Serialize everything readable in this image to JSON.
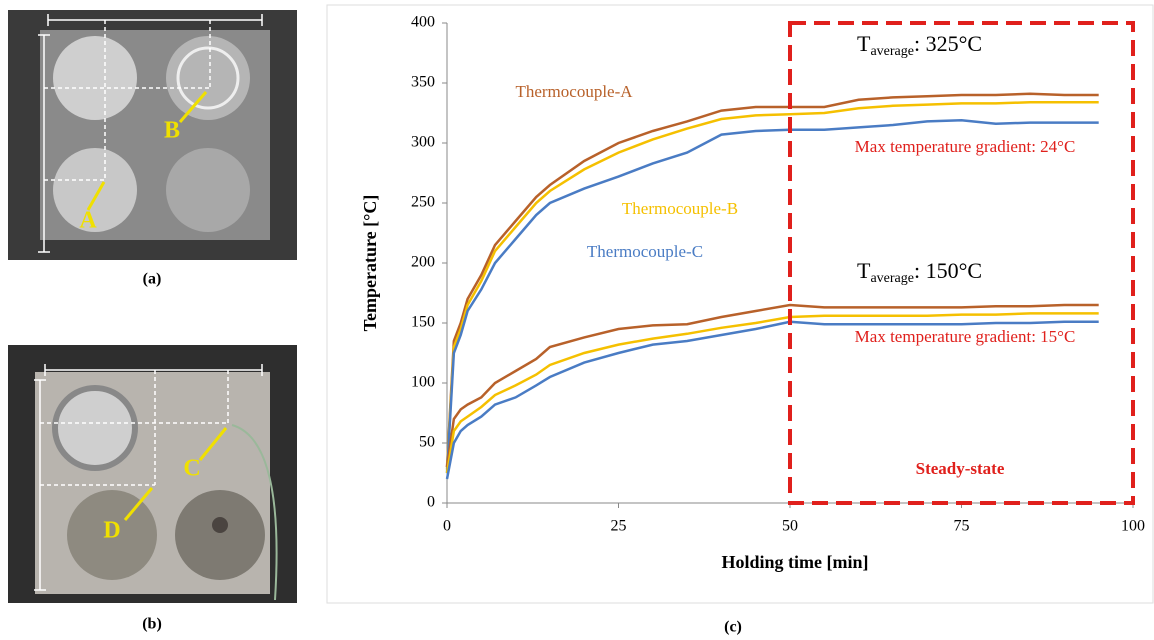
{
  "photos": {
    "a": {
      "caption": "(a)",
      "points": [
        "A",
        "B"
      ]
    },
    "b": {
      "caption": "(b)",
      "points": [
        "C",
        "D"
      ]
    }
  },
  "chart_data": {
    "type": "line",
    "caption": "(c)",
    "x_label": "Holding time [min]",
    "y_label": "Temperature [°C]",
    "xlim": [
      0,
      100
    ],
    "xticks": [
      0,
      25,
      50,
      75,
      100
    ],
    "ylim": [
      0,
      400
    ],
    "yticks": [
      0,
      50,
      100,
      150,
      200,
      250,
      300,
      350,
      400
    ],
    "x": [
      0,
      1,
      2,
      3,
      5,
      7,
      10,
      13,
      15,
      20,
      25,
      30,
      35,
      40,
      45,
      50,
      55,
      60,
      65,
      70,
      75,
      80,
      85,
      90,
      95
    ],
    "series": [
      {
        "name": "Thermocouple-A",
        "color": "#b8612a",
        "values": [
          30,
          135,
          150,
          170,
          190,
          215,
          235,
          255,
          265,
          285,
          300,
          310,
          318,
          327,
          330,
          330,
          330,
          336,
          338,
          339,
          340,
          340,
          341,
          340,
          340
        ]
      },
      {
        "name": "Thermocouple-B",
        "color": "#f5c000",
        "values": [
          28,
          130,
          145,
          165,
          185,
          210,
          230,
          250,
          260,
          278,
          292,
          303,
          312,
          320,
          323,
          324,
          325,
          329,
          331,
          332,
          333,
          333,
          334,
          334,
          334
        ]
      },
      {
        "name": "Thermocouple-C",
        "color": "#4a7cc4",
        "values": [
          25,
          125,
          140,
          160,
          178,
          200,
          220,
          240,
          250,
          262,
          272,
          283,
          292,
          307,
          310,
          311,
          311,
          313,
          315,
          318,
          319,
          316,
          317,
          317,
          317
        ]
      },
      {
        "color": "#b8612a",
        "values": [
          30,
          70,
          78,
          82,
          88,
          100,
          110,
          120,
          130,
          138,
          145,
          148,
          149,
          155,
          160,
          165,
          163,
          163,
          163,
          163,
          163,
          164,
          164,
          165,
          165
        ]
      },
      {
        "color": "#f5c000",
        "values": [
          25,
          60,
          68,
          72,
          80,
          90,
          98,
          107,
          115,
          125,
          132,
          137,
          141,
          146,
          150,
          155,
          156,
          156,
          156,
          156,
          157,
          157,
          158,
          158,
          158
        ]
      },
      {
        "color": "#4a7cc4",
        "values": [
          20,
          50,
          60,
          65,
          72,
          82,
          88,
          98,
          105,
          117,
          125,
          132,
          135,
          140,
          145,
          151,
          149,
          149,
          149,
          149,
          149,
          150,
          150,
          151,
          151
        ]
      }
    ],
    "annotations": {
      "high_average": {
        "symbol": "T",
        "subscript": "average",
        "text": ": 325°C"
      },
      "high_gradient": "Max temperature gradient: 24°C",
      "low_average": {
        "symbol": "T",
        "subscript": "average",
        "text": ": 150°C"
      },
      "low_gradient": "Max temperature gradient: 15°C",
      "steady_state": "Steady-state"
    },
    "region": {
      "x": [
        50,
        100
      ],
      "color": "#e0201c"
    }
  }
}
